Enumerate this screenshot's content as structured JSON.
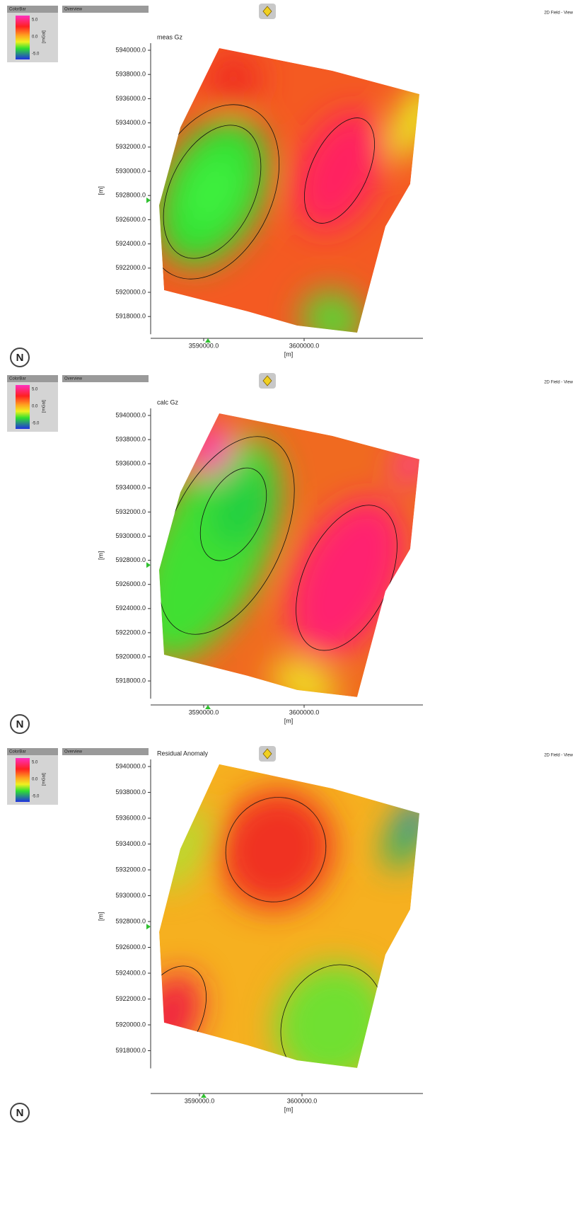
{
  "panels": [
    {
      "colorbar": {
        "title": "ColorBar",
        "labels": [
          "5.0",
          "0.0",
          "-5.0"
        ],
        "unit": "[mGal]"
      },
      "overview": "Overview",
      "view_label": "2D Field - View",
      "title": "meas Gz",
      "y_axis": {
        "label": "[m]",
        "ticks": [
          "5940000.0",
          "5938000.0",
          "5936000.0",
          "5934000.0",
          "5932000.0",
          "5930000.0",
          "5928000.0",
          "5926000.0",
          "5924000.0",
          "5922000.0",
          "5920000.0",
          "5918000.0"
        ]
      },
      "x_axis": {
        "label": "[m]",
        "ticks": [
          "3590000.0",
          "3600000.0"
        ]
      },
      "north": "N"
    },
    {
      "colorbar": {
        "title": "ColorBar",
        "labels": [
          "5.0",
          "0.0",
          "-5.0"
        ],
        "unit": "[mGal]"
      },
      "overview": "Overview",
      "view_label": "2D Field - View",
      "title": "calc Gz",
      "y_axis": {
        "label": "[m]",
        "ticks": [
          "5940000.0",
          "5938000.0",
          "5936000.0",
          "5934000.0",
          "5932000.0",
          "5930000.0",
          "5928000.0",
          "5926000.0",
          "5924000.0",
          "5922000.0",
          "5920000.0",
          "5918000.0"
        ]
      },
      "x_axis": {
        "label": "[m]",
        "ticks": [
          "3590000.0",
          "3600000.0"
        ]
      },
      "north": "N"
    },
    {
      "colorbar": {
        "title": "ColorBar",
        "labels": [
          "5.0",
          "0.0",
          "-5.0"
        ],
        "unit": "[mGal]"
      },
      "overview": "Overview",
      "view_label": "2D Field - View",
      "title": "Residual Anomaly",
      "y_axis": {
        "label": "[m]",
        "ticks": [
          "5940000.0",
          "5938000.0",
          "5936000.0",
          "5934000.0",
          "5932000.0",
          "5930000.0",
          "5928000.0",
          "5926000.0",
          "5924000.0",
          "5922000.0",
          "5920000.0",
          "5918000.0"
        ]
      },
      "x_axis": {
        "label": "[m]",
        "ticks": [
          "3590000.0",
          "3600000.0"
        ]
      },
      "north": "N"
    }
  ]
}
